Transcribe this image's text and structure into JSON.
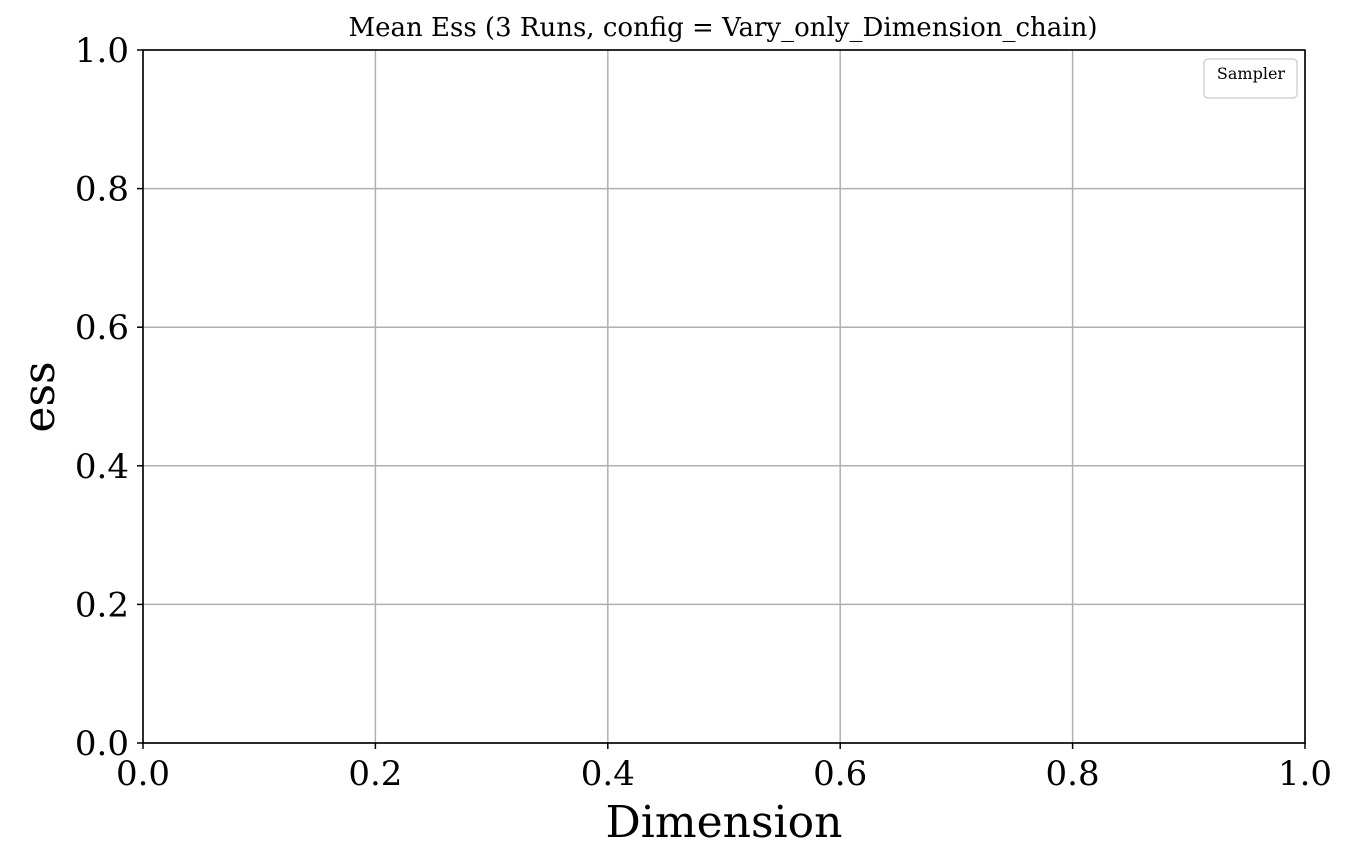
{
  "chart_data": {
    "type": "line",
    "title": "Mean Ess (3 Runs, config = Vary_only_Dimension_chain)",
    "xlabel": "Dimension",
    "ylabel": "ess",
    "xlim": [
      0.0,
      1.0
    ],
    "ylim": [
      0.0,
      1.0
    ],
    "x_ticks": [
      0.0,
      0.2,
      0.4,
      0.6,
      0.8,
      1.0
    ],
    "y_ticks": [
      0.0,
      0.2,
      0.4,
      0.6,
      0.8,
      1.0
    ],
    "x_tick_labels": [
      "0.0",
      "0.2",
      "0.4",
      "0.6",
      "0.8",
      "1.0"
    ],
    "y_tick_labels": [
      "0.0",
      "0.2",
      "0.4",
      "0.6",
      "0.8",
      "1.0"
    ],
    "series": [],
    "grid": true,
    "legend": {
      "title": "Sampler",
      "placement": "top-right",
      "entries": []
    },
    "colors": {
      "grid": "#b0b0b0",
      "axis": "#000000",
      "legend_border": "#cccccc",
      "background": "#ffffff"
    }
  }
}
